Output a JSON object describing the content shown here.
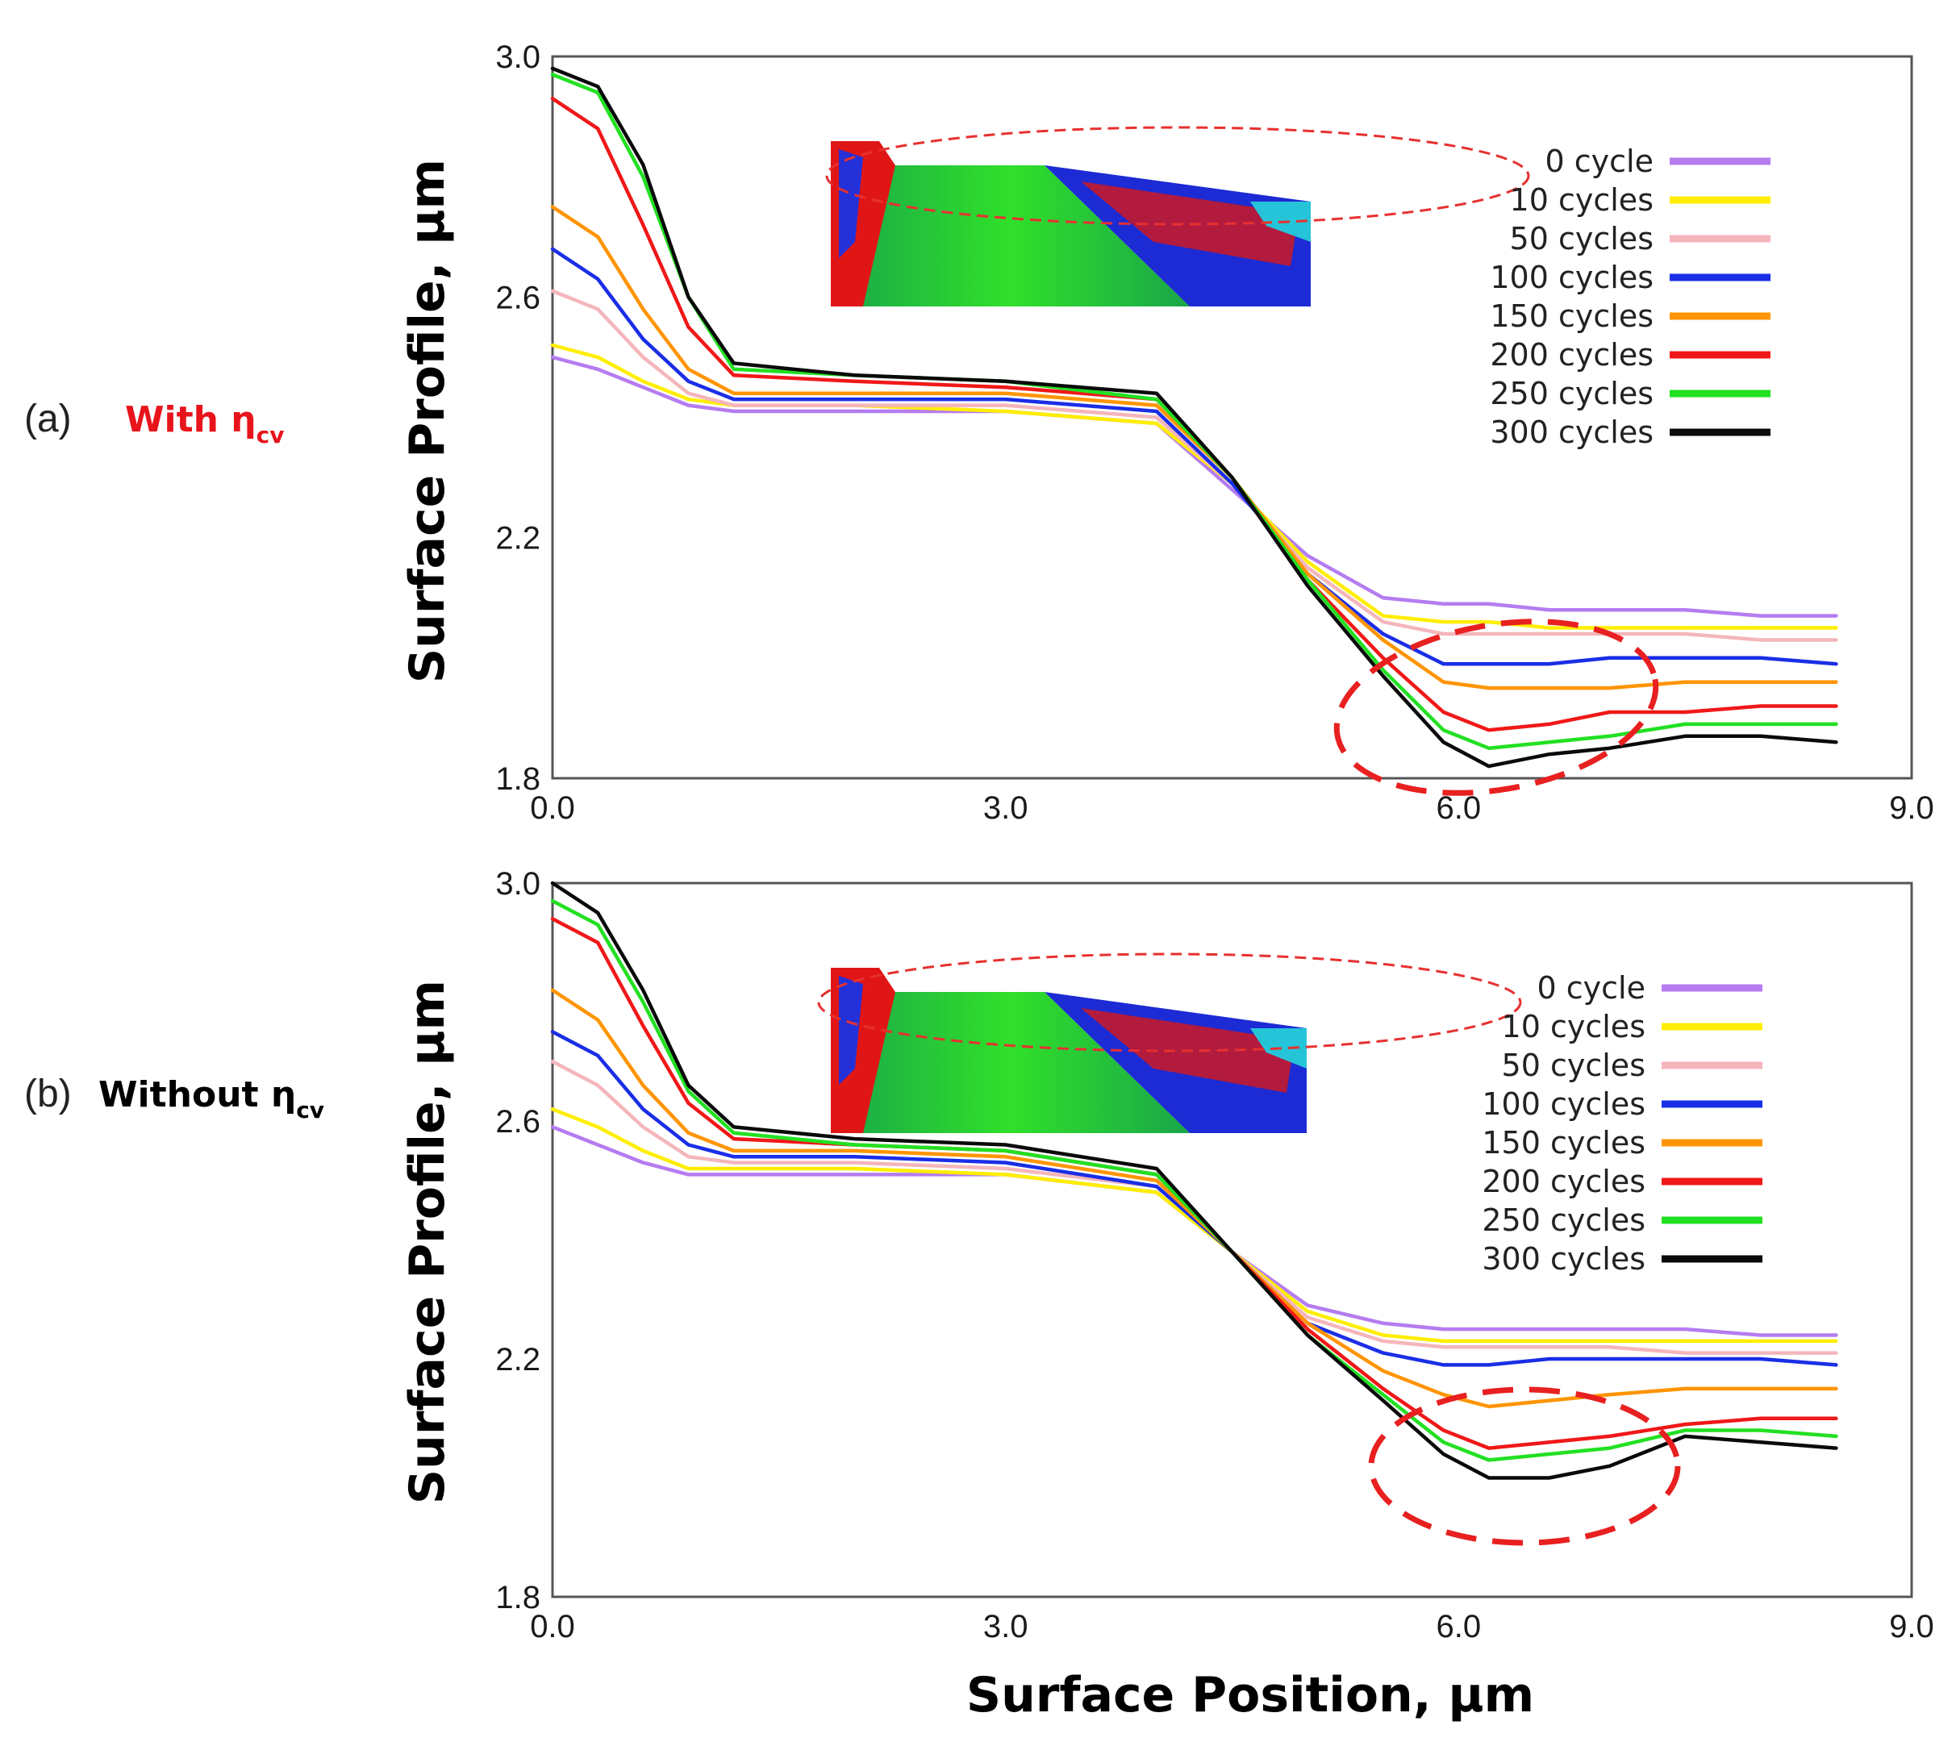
{
  "chart_data": [
    {
      "type": "line",
      "panel_id": "(a)",
      "panel_label": "With η",
      "panel_label_subscript": "cv",
      "panel_label_color": "#e8141b",
      "xlabel": "",
      "ylabel": "Surface Profile, µm",
      "xlim": [
        0.0,
        9.0
      ],
      "ylim": [
        1.8,
        3.0
      ],
      "xticks": [
        "0.0",
        "3.0",
        "6.0",
        "9.0"
      ],
      "yticks": [
        "1.8",
        "2.2",
        "2.6",
        "3.0"
      ],
      "legend_position": "top-right",
      "x": [
        0.0,
        0.3,
        0.6,
        0.9,
        1.2,
        2.0,
        3.0,
        4.0,
        4.5,
        5.0,
        5.5,
        5.9,
        6.2,
        6.6,
        7.0,
        7.5,
        8.0,
        8.5
      ],
      "series": [
        {
          "name": "0 cycle",
          "color": "#b57cf0",
          "values": [
            2.5,
            2.48,
            2.45,
            2.42,
            2.41,
            2.41,
            2.41,
            2.39,
            2.28,
            2.17,
            2.1,
            2.09,
            2.09,
            2.08,
            2.08,
            2.08,
            2.07,
            2.07
          ]
        },
        {
          "name": "10 cycles",
          "color": "#ffee00",
          "values": [
            2.52,
            2.5,
            2.46,
            2.43,
            2.42,
            2.42,
            2.41,
            2.39,
            2.29,
            2.16,
            2.07,
            2.06,
            2.06,
            2.05,
            2.05,
            2.05,
            2.05,
            2.05
          ]
        },
        {
          "name": "50 cycles",
          "color": "#f4b6bb",
          "values": [
            2.61,
            2.58,
            2.5,
            2.44,
            2.42,
            2.42,
            2.42,
            2.4,
            2.29,
            2.15,
            2.06,
            2.04,
            2.04,
            2.04,
            2.04,
            2.04,
            2.03,
            2.03
          ]
        },
        {
          "name": "100 cycles",
          "color": "#1a2ee6",
          "values": [
            2.68,
            2.63,
            2.53,
            2.46,
            2.43,
            2.43,
            2.43,
            2.41,
            2.29,
            2.14,
            2.04,
            1.99,
            1.99,
            1.99,
            2.0,
            2.0,
            2.0,
            1.99
          ]
        },
        {
          "name": "150 cycles",
          "color": "#ff9400",
          "values": [
            2.75,
            2.7,
            2.58,
            2.48,
            2.44,
            2.44,
            2.44,
            2.42,
            2.3,
            2.14,
            2.03,
            1.96,
            1.95,
            1.95,
            1.95,
            1.96,
            1.96,
            1.96
          ]
        },
        {
          "name": "200 cycles",
          "color": "#f01818",
          "values": [
            2.93,
            2.88,
            2.72,
            2.55,
            2.47,
            2.46,
            2.45,
            2.43,
            2.3,
            2.13,
            2.0,
            1.91,
            1.88,
            1.89,
            1.91,
            1.91,
            1.92,
            1.92
          ]
        },
        {
          "name": "250 cycles",
          "color": "#22e022",
          "values": [
            2.97,
            2.94,
            2.8,
            2.6,
            2.48,
            2.47,
            2.46,
            2.43,
            2.3,
            2.13,
            1.98,
            1.88,
            1.85,
            1.86,
            1.87,
            1.89,
            1.89,
            1.89
          ]
        },
        {
          "name": "300 cycles",
          "color": "#0a0a0a",
          "values": [
            2.98,
            2.95,
            2.82,
            2.6,
            2.49,
            2.47,
            2.46,
            2.44,
            2.3,
            2.12,
            1.97,
            1.86,
            1.82,
            1.84,
            1.85,
            1.87,
            1.87,
            1.86
          ]
        }
      ]
    },
    {
      "type": "line",
      "panel_id": "(b)",
      "panel_label": "Without η",
      "panel_label_subscript": "cv",
      "panel_label_color": "#000000",
      "xlabel": "Surface Position, µm",
      "ylabel": "Surface Profile, µm",
      "xlim": [
        0.0,
        9.0
      ],
      "ylim": [
        1.8,
        3.0
      ],
      "xticks": [
        "0.0",
        "3.0",
        "6.0",
        "9.0"
      ],
      "yticks": [
        "1.8",
        "2.2",
        "2.6",
        "3.0"
      ],
      "legend_position": "top-right",
      "x": [
        0.0,
        0.3,
        0.6,
        0.9,
        1.2,
        2.0,
        3.0,
        4.0,
        4.5,
        5.0,
        5.5,
        5.9,
        6.2,
        6.6,
        7.0,
        7.5,
        8.0,
        8.5
      ],
      "series": [
        {
          "name": "0 cycle",
          "color": "#b57cf0",
          "values": [
            2.59,
            2.56,
            2.53,
            2.51,
            2.51,
            2.51,
            2.51,
            2.48,
            2.38,
            2.29,
            2.26,
            2.25,
            2.25,
            2.25,
            2.25,
            2.25,
            2.24,
            2.24
          ]
        },
        {
          "name": "10 cycles",
          "color": "#ffee00",
          "values": [
            2.62,
            2.59,
            2.55,
            2.52,
            2.52,
            2.52,
            2.51,
            2.48,
            2.38,
            2.28,
            2.24,
            2.23,
            2.23,
            2.23,
            2.23,
            2.23,
            2.23,
            2.23
          ]
        },
        {
          "name": "50 cycles",
          "color": "#f4b6bb",
          "values": [
            2.7,
            2.66,
            2.59,
            2.54,
            2.53,
            2.53,
            2.52,
            2.49,
            2.38,
            2.27,
            2.23,
            2.22,
            2.22,
            2.22,
            2.22,
            2.21,
            2.21,
            2.21
          ]
        },
        {
          "name": "100 cycles",
          "color": "#1a2ee6",
          "values": [
            2.75,
            2.71,
            2.62,
            2.56,
            2.54,
            2.54,
            2.53,
            2.49,
            2.38,
            2.26,
            2.21,
            2.19,
            2.19,
            2.2,
            2.2,
            2.2,
            2.2,
            2.19
          ]
        },
        {
          "name": "150 cycles",
          "color": "#ff9400",
          "values": [
            2.82,
            2.77,
            2.66,
            2.58,
            2.55,
            2.55,
            2.54,
            2.5,
            2.38,
            2.26,
            2.18,
            2.14,
            2.12,
            2.13,
            2.14,
            2.15,
            2.15,
            2.15
          ]
        },
        {
          "name": "200 cycles",
          "color": "#f01818",
          "values": [
            2.94,
            2.9,
            2.76,
            2.63,
            2.57,
            2.56,
            2.55,
            2.51,
            2.38,
            2.25,
            2.15,
            2.08,
            2.05,
            2.06,
            2.07,
            2.09,
            2.1,
            2.1
          ]
        },
        {
          "name": "250 cycles",
          "color": "#22e022",
          "values": [
            2.97,
            2.93,
            2.8,
            2.65,
            2.58,
            2.56,
            2.55,
            2.51,
            2.38,
            2.24,
            2.14,
            2.06,
            2.03,
            2.04,
            2.05,
            2.08,
            2.08,
            2.07
          ]
        },
        {
          "name": "300 cycles",
          "color": "#0a0a0a",
          "values": [
            3.0,
            2.95,
            2.82,
            2.66,
            2.59,
            2.57,
            2.56,
            2.52,
            2.38,
            2.24,
            2.13,
            2.04,
            2.0,
            2.0,
            2.02,
            2.07,
            2.06,
            2.05
          ]
        }
      ]
    }
  ]
}
